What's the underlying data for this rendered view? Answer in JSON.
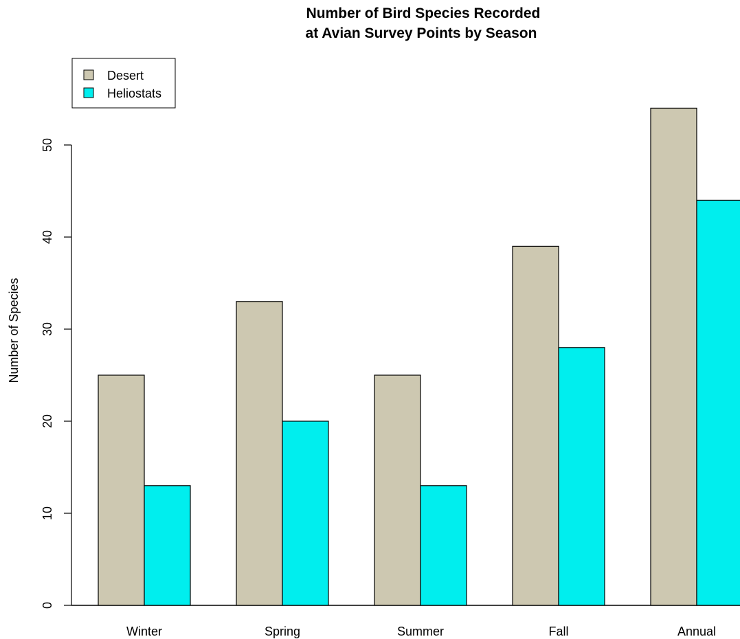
{
  "chart_data": {
    "type": "bar",
    "title_line1": "Number of Bird Species Recorded",
    "title_line2": "at Avian Survey Points by Season",
    "xlabel": "",
    "ylabel": "Number of Species",
    "categories": [
      "Winter",
      "Spring",
      "Summer",
      "Fall",
      "Annual"
    ],
    "series": [
      {
        "name": "Desert",
        "color": "#cdc8b1",
        "values": [
          25,
          33,
          25,
          39,
          54
        ]
      },
      {
        "name": "Heliostats",
        "color": "#00eeee",
        "values": [
          13,
          20,
          13,
          28,
          44
        ]
      }
    ],
    "yticks": [
      0,
      10,
      20,
      30,
      40,
      50
    ],
    "ylim": [
      0,
      54
    ],
    "grid": false,
    "legend_position": "top-left"
  }
}
